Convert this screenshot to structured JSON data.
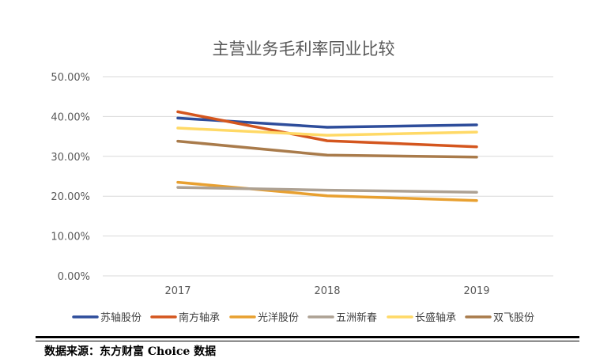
{
  "chart_data": {
    "type": "line",
    "title": "主营业务毛利率同业比较",
    "xlabel": "",
    "ylabel": "",
    "categories": [
      "2017",
      "2018",
      "2019"
    ],
    "ylim": [
      0,
      50
    ],
    "yticks": [
      "0.00%",
      "10.00%",
      "20.00%",
      "30.00%",
      "40.00%",
      "50.00%"
    ],
    "grid": true,
    "legend": "bottom",
    "series": [
      {
        "name": "苏轴股份",
        "color": "#2E4D9B",
        "values": [
          39.6,
          37.3,
          37.9
        ]
      },
      {
        "name": "南方轴承",
        "color": "#D4561E",
        "values": [
          41.2,
          33.9,
          32.4
        ]
      },
      {
        "name": "光洋股份",
        "color": "#E8A030",
        "values": [
          23.5,
          20.1,
          18.9
        ]
      },
      {
        "name": "五洲新春",
        "color": "#ADA193",
        "values": [
          22.2,
          21.5,
          21.0
        ]
      },
      {
        "name": "长盛轴承",
        "color": "#FFD966",
        "values": [
          37.1,
          35.3,
          36.1
        ]
      },
      {
        "name": "双飞股份",
        "color": "#A97B4B",
        "values": [
          33.8,
          30.3,
          29.8
        ]
      }
    ]
  },
  "footer": {
    "source": "数据来源：东方财富 Choice 数据"
  }
}
